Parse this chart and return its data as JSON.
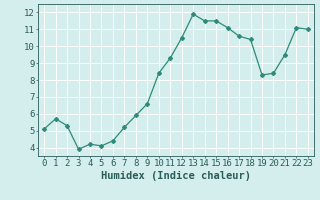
{
  "x": [
    0,
    1,
    2,
    3,
    4,
    5,
    6,
    7,
    8,
    9,
    10,
    11,
    12,
    13,
    14,
    15,
    16,
    17,
    18,
    19,
    20,
    21,
    22,
    23
  ],
  "y": [
    5.1,
    5.7,
    5.3,
    3.9,
    4.2,
    4.1,
    4.4,
    5.2,
    5.9,
    6.6,
    8.4,
    9.3,
    10.5,
    11.9,
    11.5,
    11.5,
    11.1,
    10.6,
    10.4,
    8.3,
    8.4,
    9.5,
    11.1,
    11.0
  ],
  "line_color": "#2e8b7a",
  "marker": "D",
  "marker_size": 2.0,
  "bg_color": "#d4eeed",
  "grid_color": "#ffffff",
  "xlabel": "Humidex (Indice chaleur)",
  "xlim": [
    -0.5,
    23.5
  ],
  "ylim": [
    3.5,
    12.5
  ],
  "yticks": [
    4,
    5,
    6,
    7,
    8,
    9,
    10,
    11,
    12
  ],
  "xticks": [
    0,
    1,
    2,
    3,
    4,
    5,
    6,
    7,
    8,
    9,
    10,
    11,
    12,
    13,
    14,
    15,
    16,
    17,
    18,
    19,
    20,
    21,
    22,
    23
  ],
  "font_color": "#2a5c5a",
  "xlabel_fontsize": 7.5,
  "tick_fontsize": 6.5,
  "linewidth": 0.9
}
